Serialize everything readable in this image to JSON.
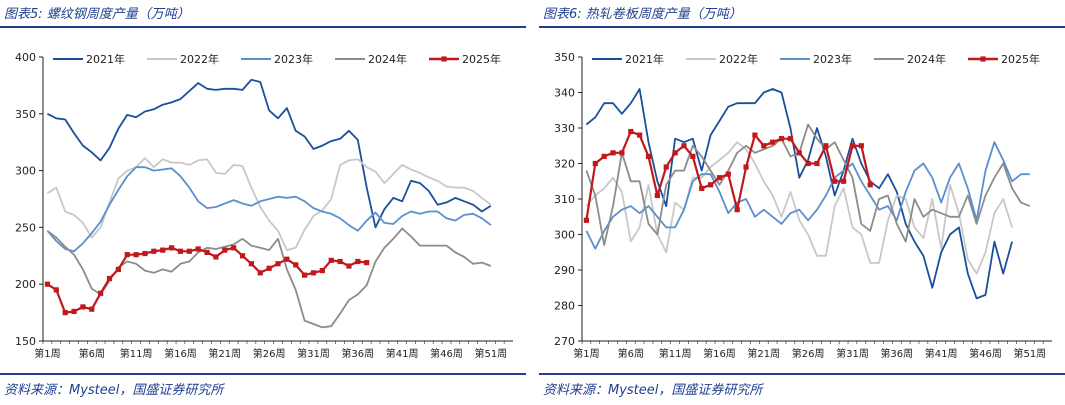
{
  "chart_data": [
    {
      "type": "line",
      "title": "图表5:  螺纹钢周度产量（万吨）",
      "source": "资料来源：Mysteel，国盛证券研究所",
      "xlabel": "",
      "ylabel": "",
      "ylim": [
        150,
        400
      ],
      "yticks": [
        150,
        200,
        250,
        300,
        350,
        400
      ],
      "xtick_weeks": [
        1,
        6,
        11,
        16,
        21,
        26,
        31,
        36,
        41,
        46,
        51
      ],
      "xtick_labels": [
        "第1周",
        "第6周",
        "第11周",
        "第16周",
        "第21周",
        "第26周",
        "第31周",
        "第36周",
        "第41周",
        "第46周",
        "第51周"
      ],
      "x_max_week": 53,
      "grid": false,
      "legend": "top",
      "series": [
        {
          "name": "2021年",
          "color": "#1b4f9c",
          "marker": false,
          "values": [
            350,
            346,
            345,
            333,
            322,
            316,
            309,
            320,
            337,
            349,
            347,
            352,
            354,
            358,
            360,
            363,
            370,
            377,
            372,
            371,
            372,
            372,
            371,
            380,
            378,
            353,
            346,
            355,
            335,
            330,
            319,
            322,
            326,
            328,
            335,
            327,
            285,
            250,
            266,
            276,
            273,
            291,
            289,
            282,
            270,
            272,
            276,
            273,
            270,
            264,
            269,
            null,
            null
          ]
        },
        {
          "name": "2022年",
          "color": "#c8c8c8",
          "marker": false,
          "values": [
            280,
            285,
            264,
            261,
            254,
            241,
            250,
            272,
            293,
            300,
            303,
            311,
            303,
            310,
            307,
            307,
            305,
            309,
            310,
            298,
            297,
            305,
            304,
            285,
            268,
            256,
            247,
            230,
            232,
            248,
            260,
            265,
            275,
            305,
            309,
            310,
            303,
            299,
            289,
            297,
            305,
            301,
            298,
            294,
            291,
            286,
            285,
            285,
            282,
            276,
            270,
            null,
            null
          ]
        },
        {
          "name": "2023年",
          "color": "#5b8fcf",
          "marker": false,
          "values": [
            247,
            238,
            231,
            229,
            236,
            245,
            255,
            270,
            283,
            295,
            303,
            303,
            300,
            301,
            302,
            295,
            285,
            273,
            267,
            268,
            271,
            274,
            271,
            269,
            273,
            275,
            277,
            276,
            277,
            273,
            267,
            264,
            262,
            258,
            252,
            247,
            256,
            263,
            254,
            253,
            260,
            264,
            262,
            264,
            264,
            258,
            256,
            261,
            262,
            258,
            252,
            null,
            null
          ]
        },
        {
          "name": "2024年",
          "color": "#8c8c8c",
          "marker": false,
          "values": [
            247,
            241,
            233,
            226,
            213,
            196,
            191,
            203,
            215,
            220,
            218,
            212,
            210,
            213,
            211,
            218,
            220,
            228,
            232,
            231,
            233,
            235,
            240,
            234,
            232,
            230,
            240,
            213,
            195,
            168,
            165,
            162,
            163,
            174,
            186,
            191,
            199,
            220,
            232,
            240,
            249,
            242,
            234,
            234,
            234,
            234,
            228,
            224,
            218,
            219,
            216,
            null,
            null
          ]
        },
        {
          "name": "2025年",
          "color": "#c0181c",
          "marker": true,
          "values": [
            200,
            195,
            175,
            176,
            180,
            178,
            192,
            205,
            213,
            226,
            226,
            227,
            229,
            230,
            232,
            229,
            229,
            231,
            228,
            224,
            230,
            232,
            225,
            218,
            210,
            214,
            218,
            222,
            217,
            208,
            210,
            212,
            221,
            220,
            216,
            220,
            219,
            null,
            null,
            null,
            null,
            null,
            null,
            null,
            null,
            null,
            null,
            null,
            null,
            null,
            null,
            null,
            null
          ]
        }
      ]
    },
    {
      "type": "line",
      "title": "图表6:  热轧卷板周度产量（万吨）",
      "source": "资料来源：Mysteel，国盛证券研究所",
      "xlabel": "",
      "ylabel": "",
      "ylim": [
        270,
        350
      ],
      "yticks": [
        270,
        280,
        290,
        300,
        310,
        320,
        330,
        340,
        350
      ],
      "xtick_weeks": [
        1,
        6,
        11,
        16,
        21,
        26,
        31,
        36,
        41,
        46,
        51
      ],
      "xtick_labels": [
        "第1周",
        "第6周",
        "第11周",
        "第16周",
        "第21周",
        "第26周",
        "第31周",
        "第36周",
        "第41周",
        "第46周",
        "第51周"
      ],
      "x_max_week": 53,
      "grid": false,
      "legend": "top",
      "series": [
        {
          "name": "2021年",
          "color": "#1b4f9c",
          "marker": false,
          "values": [
            331,
            333,
            337,
            337,
            334,
            337,
            341,
            326,
            315,
            308,
            327,
            326,
            327,
            318,
            328,
            332,
            336,
            337,
            337,
            337,
            340,
            341,
            340,
            330,
            316,
            321,
            330,
            322,
            311,
            318,
            327,
            320,
            315,
            313,
            317,
            312,
            303,
            298,
            294,
            285,
            295,
            300,
            302,
            289,
            282,
            283,
            298,
            289,
            298,
            null,
            null,
            null,
            null
          ]
        },
        {
          "name": "2022年",
          "color": "#c8c8c8",
          "marker": false,
          "values": [
            308,
            311,
            313,
            316,
            312,
            298,
            302,
            314,
            300,
            295,
            309,
            307,
            316,
            316,
            319,
            321,
            323,
            326,
            324,
            320,
            315,
            311,
            305,
            312,
            304,
            300,
            294,
            294,
            308,
            313,
            302,
            300,
            292,
            292,
            304,
            311,
            310,
            302,
            299,
            310,
            296,
            314,
            306,
            293,
            289,
            295,
            306,
            310,
            302,
            null,
            null,
            null,
            null
          ]
        },
        {
          "name": "2023年",
          "color": "#5b8fcf",
          "marker": false,
          "values": [
            301,
            296,
            301,
            305,
            307,
            308,
            306,
            308,
            305,
            302,
            302,
            307,
            315,
            317,
            317,
            312,
            306,
            309,
            310,
            305,
            307,
            305,
            303,
            306,
            307,
            304,
            307,
            311,
            316,
            318,
            320,
            315,
            311,
            307,
            308,
            304,
            312,
            318,
            320,
            316,
            309,
            316,
            320,
            313,
            304,
            318,
            326,
            321,
            315,
            317,
            317,
            null,
            null
          ]
        },
        {
          "name": "2024年",
          "color": "#8c8c8c",
          "marker": false,
          "values": [
            318,
            311,
            297,
            308,
            323,
            315,
            315,
            303,
            300,
            314,
            318,
            318,
            325,
            322,
            318,
            314,
            318,
            323,
            325,
            323,
            324,
            325,
            327,
            322,
            323,
            331,
            327,
            324,
            326,
            321,
            316,
            303,
            301,
            310,
            311,
            303,
            298,
            310,
            305,
            307,
            306,
            305,
            305,
            311,
            303,
            311,
            316,
            320,
            313,
            309,
            308,
            null,
            null
          ]
        },
        {
          "name": "2025年",
          "color": "#c0181c",
          "marker": true,
          "values": [
            304,
            320,
            322,
            323,
            323,
            329,
            328,
            322,
            311,
            319,
            323,
            325,
            322,
            313,
            314,
            316,
            317,
            307,
            319,
            328,
            325,
            326,
            327,
            327,
            323,
            320,
            320,
            325,
            315,
            315,
            325,
            325,
            314,
            null,
            null,
            null,
            null,
            null,
            null,
            null,
            null,
            null,
            null,
            null,
            null,
            null,
            null,
            null,
            null,
            null,
            null,
            null,
            null
          ]
        }
      ]
    }
  ]
}
